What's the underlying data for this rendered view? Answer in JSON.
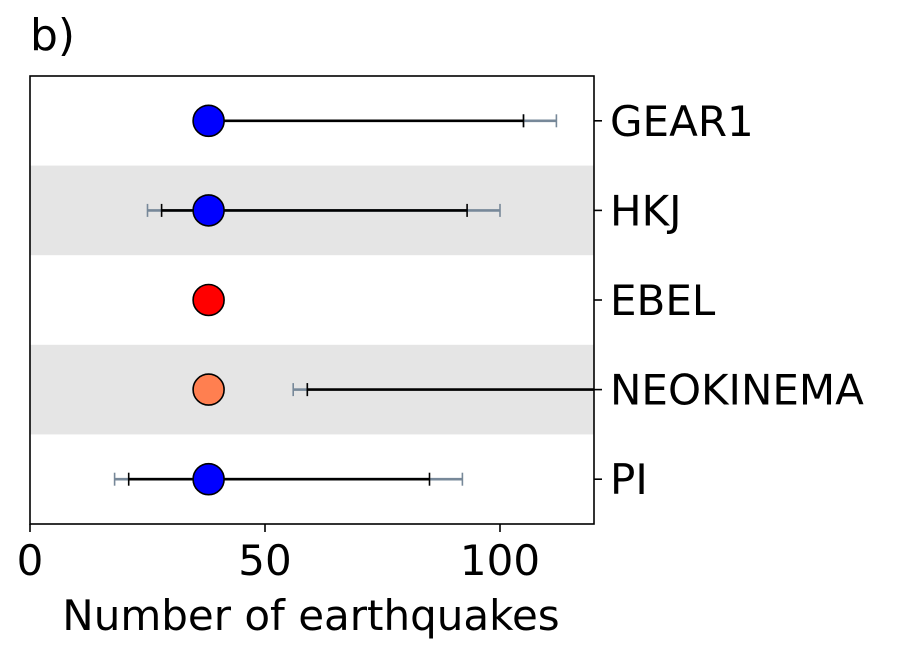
{
  "chart_data": {
    "type": "scatter",
    "panel_label": "b)",
    "xlabel": "Number of earthquakes",
    "xlim": [
      0,
      120
    ],
    "x_ticks": [
      0,
      50,
      100
    ],
    "x_tick_labels": [
      "0",
      "50",
      "100"
    ],
    "categories": [
      "GEAR1",
      "HKJ",
      "EBEL",
      "NEOKINEMA",
      "PI"
    ],
    "band_color": "#e5e5e5",
    "outer_interval_color": "#778899",
    "inner_interval_color": "#000000",
    "series": [
      {
        "category": "GEAR1",
        "value": 38,
        "marker_color": "#0000ff",
        "inner_interval": [
          38,
          105
        ],
        "outer_interval": [
          105,
          112
        ]
      },
      {
        "category": "HKJ",
        "value": 38,
        "marker_color": "#0000ff",
        "inner_interval": [
          28,
          93
        ],
        "outer_interval": [
          25,
          100
        ]
      },
      {
        "category": "EBEL",
        "value": 38,
        "marker_color": "#ff0000",
        "inner_interval": null,
        "outer_interval": null
      },
      {
        "category": "NEOKINEMA",
        "value": 38,
        "marker_color": "#ff7f50",
        "inner_interval": [
          59,
          120
        ],
        "outer_interval": [
          56,
          59
        ]
      },
      {
        "category": "PI",
        "value": 38,
        "marker_color": "#0000ff",
        "inner_interval": [
          21,
          85
        ],
        "outer_interval": [
          18,
          92
        ]
      }
    ]
  }
}
